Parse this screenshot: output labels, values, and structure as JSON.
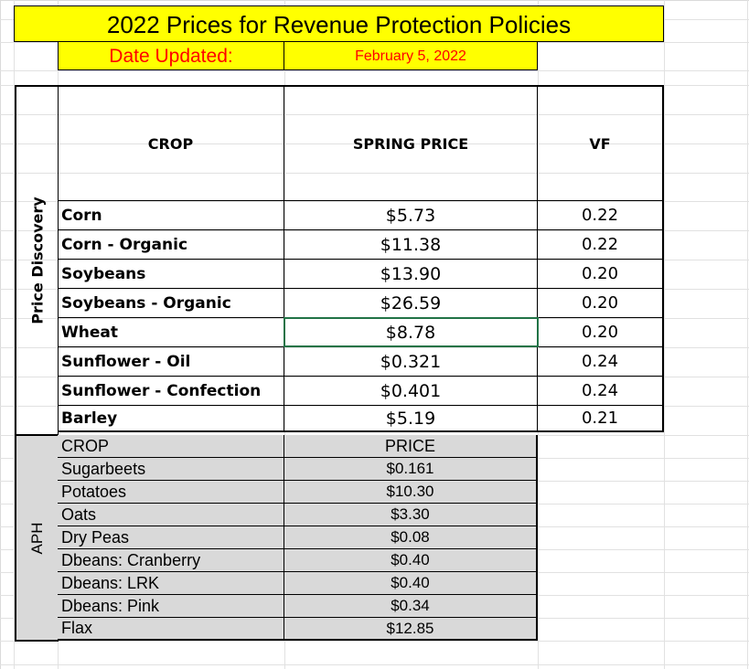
{
  "title": "2022 Prices for Revenue Protection Policies",
  "date_label": "Date Updated:",
  "date_value": "February 5, 2022",
  "revenue_section": {
    "side_label": "Price Discovery",
    "headers": {
      "crop": "CROP",
      "price": "SPRING PRICE",
      "vf": "VF"
    },
    "rows": [
      {
        "crop": "Corn",
        "price": "$5.73",
        "vf": "0.22"
      },
      {
        "crop": "Corn - Organic",
        "price": "$11.38",
        "vf": "0.22"
      },
      {
        "crop": "Soybeans",
        "price": "$13.90",
        "vf": "0.20"
      },
      {
        "crop": "Soybeans - Organic",
        "price": "$26.59",
        "vf": "0.20"
      },
      {
        "crop": "Wheat",
        "price": "$8.78",
        "vf": "0.20"
      },
      {
        "crop": "Sunflower - Oil",
        "price": "$0.321",
        "vf": "0.24"
      },
      {
        "crop": "Sunflower - Confection",
        "price": "$0.401",
        "vf": "0.24"
      },
      {
        "crop": "Barley",
        "price": "$5.19",
        "vf": "0.21"
      }
    ]
  },
  "aph_section": {
    "side_label": "APH",
    "headers": {
      "crop": "CROP",
      "price": "PRICE"
    },
    "rows": [
      {
        "crop": "Sugarbeets",
        "price": "$0.161"
      },
      {
        "crop": "Potatoes",
        "price": "$10.30"
      },
      {
        "crop": "Oats",
        "price": "$3.30"
      },
      {
        "crop": "Dry Peas",
        "price": "$0.08"
      },
      {
        "crop": "Dbeans: Cranberry",
        "price": "$0.40"
      },
      {
        "crop": "Dbeans: LRK",
        "price": "$0.40"
      },
      {
        "crop": "Dbeans: Pink",
        "price": "$0.34"
      },
      {
        "crop": "Flax",
        "price": "$12.85"
      }
    ]
  },
  "colors": {
    "title_bg": "#ffff00",
    "date_text": "#ff0000",
    "aph_bg": "#d9d9d9",
    "selection": "#217346"
  }
}
